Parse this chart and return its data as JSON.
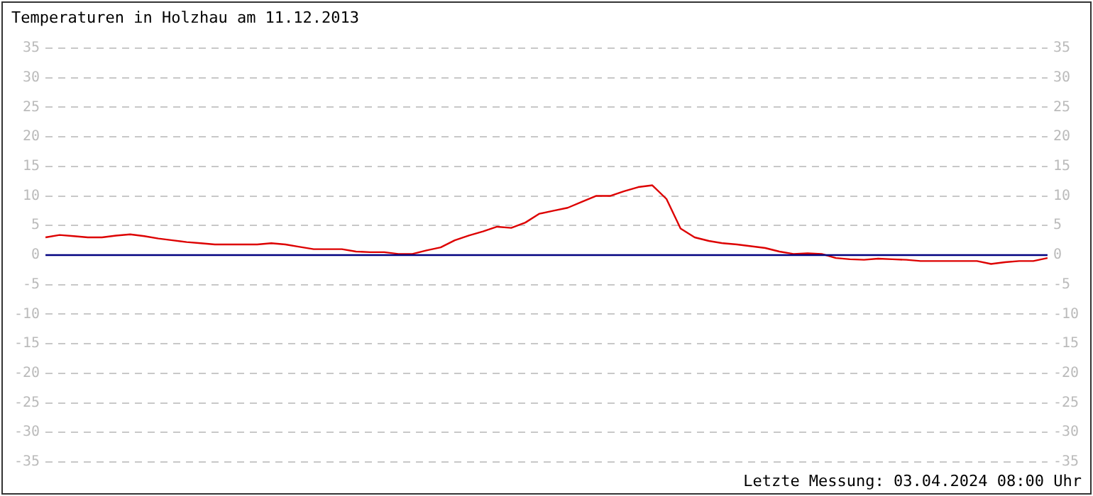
{
  "chart_data": {
    "type": "line",
    "title": "Temperaturen in Holzhau am 11.12.2013",
    "annotations": [
      "Letzte Messung: 03.04.2024 08:00 Uhr"
    ],
    "categories": [
      null,
      null,
      null,
      null,
      null,
      null,
      null,
      null,
      null,
      null,
      null,
      null,
      null,
      null,
      null,
      null,
      null,
      null,
      null,
      null,
      null,
      null,
      null,
      null,
      null,
      null,
      null,
      null,
      null,
      null,
      null,
      null,
      null,
      null,
      null,
      null,
      null,
      null,
      null,
      null,
      null,
      null,
      null,
      null,
      null,
      null,
      null,
      null,
      null,
      null,
      null,
      null,
      null,
      null,
      null,
      null,
      null,
      null,
      null,
      null,
      null,
      null,
      null,
      null,
      null,
      null,
      null,
      null,
      null,
      null,
      null,
      null
    ],
    "series": [
      {
        "color": "#dd0000",
        "values": [
          3,
          3.4,
          3.2,
          3,
          3,
          3.3,
          3.5,
          3.2,
          2.8,
          2.5,
          2.2,
          2,
          1.8,
          1.8,
          1.8,
          1.8,
          2,
          1.8,
          1.4,
          1,
          1,
          1,
          0.6,
          0.5,
          0.5,
          0.2,
          0.2,
          0.8,
          1.3,
          2.5,
          3.3,
          4,
          4.8,
          4.6,
          5.5,
          7,
          7.5,
          8,
          9,
          10,
          10,
          10.8,
          11.5,
          11.8,
          9.5,
          4.5,
          3,
          2.4,
          2,
          1.8,
          1.5,
          1.2,
          0.6,
          0.2,
          0.3,
          0.2,
          -0.5,
          -0.7,
          -0.8,
          -0.6,
          -0.7,
          -0.8,
          -1,
          -1,
          -1,
          -1,
          -1,
          -1.5,
          -1.2,
          -1,
          -1,
          -0.5
        ]
      }
    ],
    "ylim": [
      -35,
      35
    ],
    "yticks": [
      -35,
      -30,
      -25,
      -20,
      -15,
      -10,
      -5,
      0,
      5,
      10,
      15,
      20,
      25,
      30,
      35
    ],
    "y2lim": [
      -35,
      35
    ],
    "y2ticks": [
      -35,
      -30,
      -25,
      -20,
      -15,
      -10,
      -5,
      0,
      5,
      10,
      15,
      20,
      25,
      30,
      35
    ],
    "ref_lines": [
      {
        "axis": "y",
        "value": 0,
        "color": "#000080"
      }
    ],
    "grid": "y",
    "legend": false,
    "marker": "none",
    "line_style": "solid"
  }
}
